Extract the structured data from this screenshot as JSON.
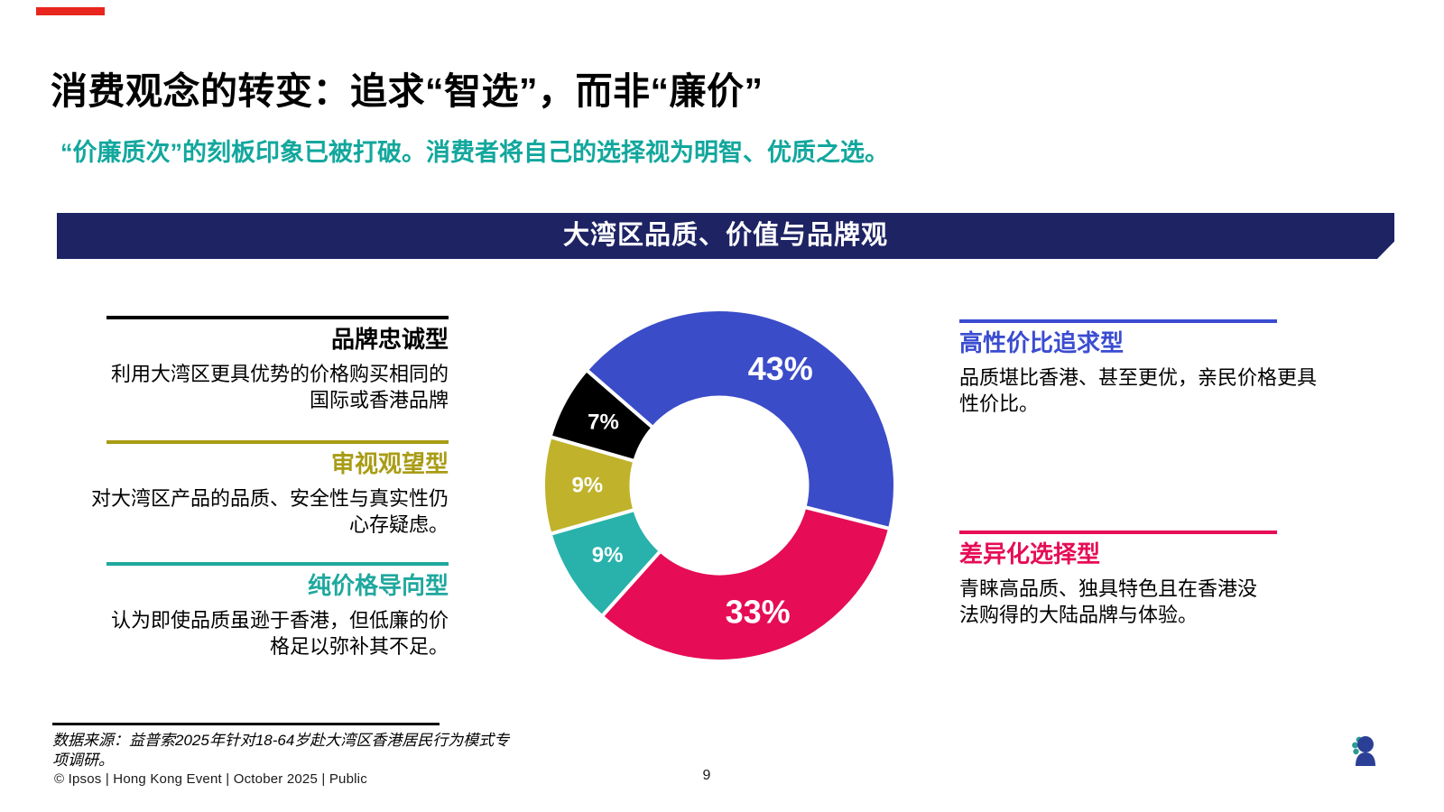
{
  "slide": {
    "accent_color": "#E8261D",
    "title": "消费观念的转变：追求“智选”，而非“廉价”",
    "title_color": "#000000",
    "subtitle": "“价廉质次”的刻板印象已被打破。消费者将自己的选择视为明智、优质之选。",
    "subtitle_color": "#12A79D",
    "banner": {
      "label": "大湾区品质、价值与品牌观",
      "bg": "#1E2364"
    }
  },
  "categories_left": [
    {
      "name": "品牌忠诚型",
      "color": "#000000",
      "desc": "利用大湾区更具优势的价格购买相同的\n国际或香港品牌"
    },
    {
      "name": "审视观望型",
      "color": "#A99C15",
      "desc": "对大湾区产品的品质、安全性与真实性仍\n心存疑虑。"
    },
    {
      "name": "纯价格导向型",
      "color": "#1FA89E",
      "desc": "认为即使品质虽逊于香港，但低廉的价\n格足以弥补其不足。"
    }
  ],
  "categories_right": [
    {
      "name": "高性价比追求型",
      "color": "#3A4CD0",
      "desc": "品质堪比香港、甚至更优，亲民价格更具\n性价比。"
    },
    {
      "name": "差异化选择型",
      "color": "#E60C55",
      "desc": "青睐高品质、独具特色且在香港没\n法购得的大陆品牌与体验。"
    }
  ],
  "chart_data": {
    "type": "pie",
    "subtype": "donut",
    "title": "大湾区品质、价值与品牌观",
    "labels": [
      "高性价比追求型",
      "差异化选择型",
      "纯价格导向型",
      "审视观望型",
      "品牌忠诚型"
    ],
    "values": [
      43,
      33,
      9,
      9,
      7
    ],
    "display_labels": [
      "43%",
      "33%",
      "9%",
      "9%",
      "7%"
    ],
    "colors": [
      "#3B4CC8",
      "#E60C55",
      "#28B2AB",
      "#C0B22A",
      "#000000"
    ],
    "start_angle_deg": -49,
    "clockwise": true,
    "inner_radius_ratio": 0.5,
    "separator_color": "#ffffff",
    "legend_position": "none"
  },
  "footer": {
    "source": "数据来源：益普索2025年针对18-64岁赴大湾区香港居民行为模式专项调研。",
    "copyright": "© Ipsos | Hong Kong Event | October 2025 | Public",
    "page_number": "9",
    "logo_text": "Ipsos",
    "logo_blue": "#3D4EA6",
    "logo_teal": "#26968E"
  }
}
